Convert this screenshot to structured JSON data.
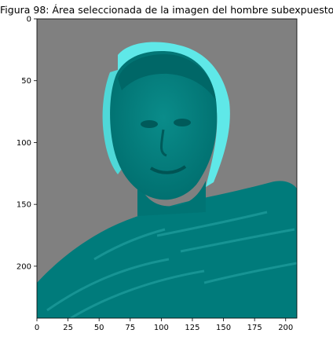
{
  "figure": {
    "title": "Figura 98: Área seleccionada de la imagen del hombre subexpuesto"
  },
  "image_content": {
    "description_icon": "teal-tinted-portrait-of-man-on-gray-background",
    "background_color": "#808080",
    "subject_color": "#008080",
    "highlight_color": "#5fe8e8"
  },
  "chart_data": {
    "type": "image",
    "xlim": [
      0,
      209
    ],
    "ylim": [
      242,
      0
    ],
    "x_ticks": [
      0,
      25,
      50,
      75,
      100,
      125,
      150,
      175,
      200
    ],
    "y_ticks": [
      0,
      50,
      100,
      150,
      200
    ],
    "x_tick_labels": [
      "0",
      "25",
      "50",
      "75",
      "100",
      "125",
      "150",
      "175",
      "200"
    ],
    "y_tick_labels": [
      "0",
      "50",
      "100",
      "150",
      "200"
    ]
  }
}
